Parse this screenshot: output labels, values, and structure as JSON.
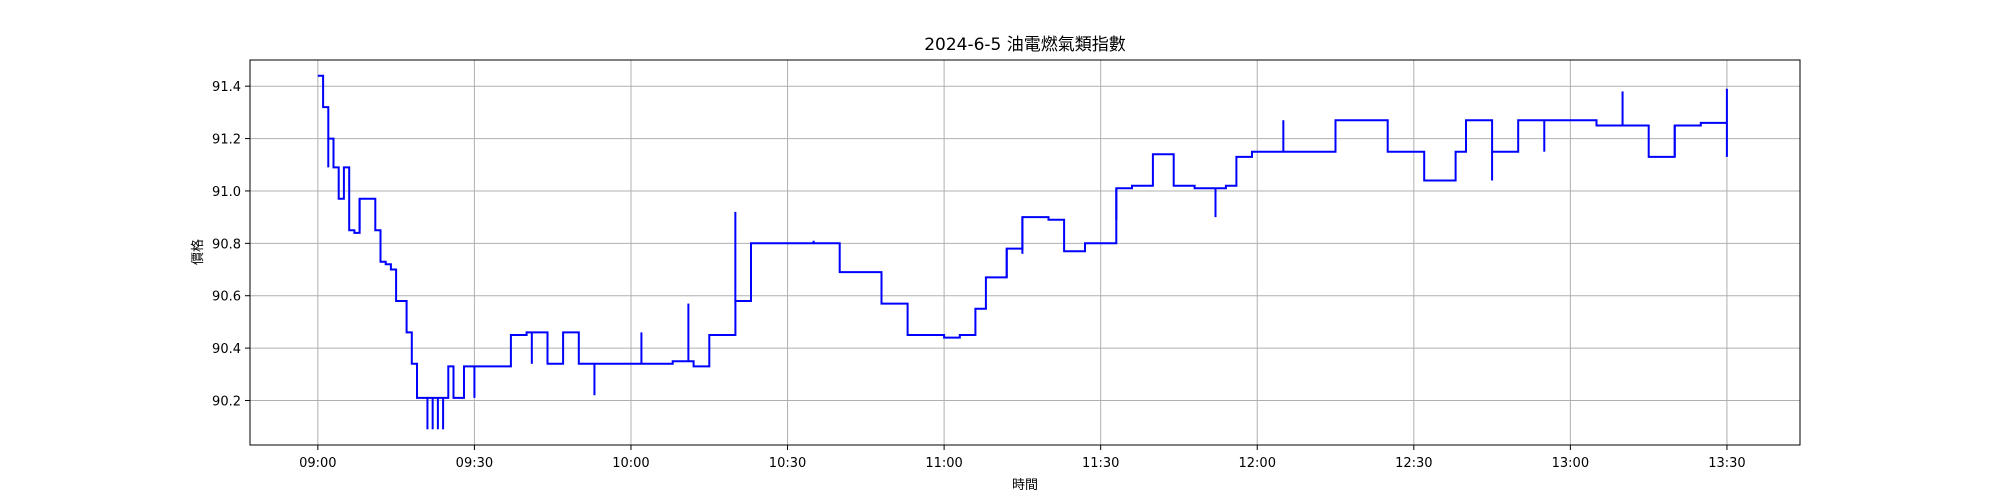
{
  "chart_data": {
    "type": "line",
    "title": "2024-6-5 油電燃氣類指數",
    "xlabel": "時間",
    "ylabel": "價格",
    "xlim": [
      "08:47",
      "13:44"
    ],
    "ylim": [
      90.03,
      91.5
    ],
    "x_ticks": [
      "09:00",
      "09:30",
      "10:00",
      "10:30",
      "11:00",
      "11:30",
      "12:00",
      "12:30",
      "13:00",
      "13:30"
    ],
    "y_ticks": [
      90.2,
      90.4,
      90.6,
      90.8,
      91.0,
      91.2,
      91.4
    ],
    "grid": true,
    "series": [
      {
        "color": "#0000ff",
        "step": true,
        "x": [
          "09:00",
          "09:01",
          "09:02",
          "09:03",
          "09:04",
          "09:05",
          "09:06",
          "09:07",
          "09:08",
          "09:10",
          "09:11",
          "09:12",
          "09:13",
          "09:14",
          "09:15",
          "09:16",
          "09:17",
          "09:18",
          "09:19",
          "09:20",
          "09:22",
          "09:24",
          "09:25",
          "09:26",
          "09:28",
          "09:31",
          "09:33",
          "09:37",
          "09:40",
          "09:44",
          "09:47",
          "09:50",
          "09:55",
          "10:00",
          "10:05",
          "10:08",
          "10:12",
          "10:15",
          "10:20",
          "10:23",
          "10:27",
          "10:30",
          "10:35",
          "10:40",
          "10:45",
          "10:48",
          "10:50",
          "10:53",
          "10:56",
          "11:00",
          "11:03",
          "11:06",
          "11:08",
          "11:12",
          "11:15",
          "11:20",
          "11:23",
          "11:27",
          "11:30",
          "11:33",
          "11:36",
          "11:40",
          "11:44",
          "11:48",
          "11:52",
          "11:54",
          "11:56",
          "11:59",
          "12:00",
          "12:04",
          "12:08",
          "12:15",
          "12:20",
          "12:25",
          "12:30",
          "12:32",
          "12:35",
          "12:38",
          "12:40",
          "12:45",
          "12:50",
          "12:55",
          "13:00",
          "13:05",
          "13:10",
          "13:15",
          "13:20",
          "13:25",
          "13:30"
        ],
        "y": [
          91.44,
          91.32,
          91.2,
          91.09,
          90.97,
          91.09,
          90.85,
          90.84,
          90.97,
          90.97,
          90.85,
          90.73,
          90.72,
          90.7,
          90.58,
          90.58,
          90.46,
          90.34,
          90.21,
          90.21,
          90.21,
          90.21,
          90.33,
          90.21,
          90.33,
          90.33,
          90.33,
          90.45,
          90.46,
          90.34,
          90.46,
          90.34,
          90.34,
          90.34,
          90.34,
          90.35,
          90.33,
          90.45,
          90.58,
          90.8,
          90.8,
          90.8,
          90.8,
          90.69,
          90.69,
          90.57,
          90.57,
          90.45,
          90.45,
          90.44,
          90.45,
          90.55,
          90.67,
          90.78,
          90.9,
          90.89,
          90.77,
          90.8,
          90.8,
          91.01,
          91.02,
          91.14,
          91.02,
          91.01,
          91.01,
          91.02,
          91.13,
          91.15,
          91.15,
          91.15,
          91.15,
          91.27,
          91.27,
          91.15,
          91.15,
          91.04,
          91.04,
          91.15,
          91.27,
          91.15,
          91.27,
          91.27,
          91.27,
          91.25,
          91.25,
          91.13,
          91.25,
          91.26,
          91.13
        ],
        "spikes_x": [
          "09:02",
          "09:08",
          "09:21",
          "09:22",
          "09:23",
          "09:24",
          "09:30",
          "09:41",
          "09:53",
          "10:02",
          "10:11",
          "10:20",
          "10:35",
          "11:12",
          "11:15",
          "11:33",
          "11:40",
          "11:52",
          "12:05",
          "12:45",
          "12:55",
          "13:10",
          "13:20"
        ],
        "spikes_y": [
          91.09,
          90.85,
          90.09,
          90.09,
          90.09,
          90.09,
          90.21,
          90.34,
          90.22,
          90.46,
          90.57,
          90.92,
          90.81,
          90.67,
          90.76,
          90.89,
          91.14,
          90.9,
          91.27,
          91.04,
          91.15,
          91.38,
          91.13
        ]
      }
    ],
    "final_point": {
      "x": "13:30",
      "y": 91.39
    }
  }
}
